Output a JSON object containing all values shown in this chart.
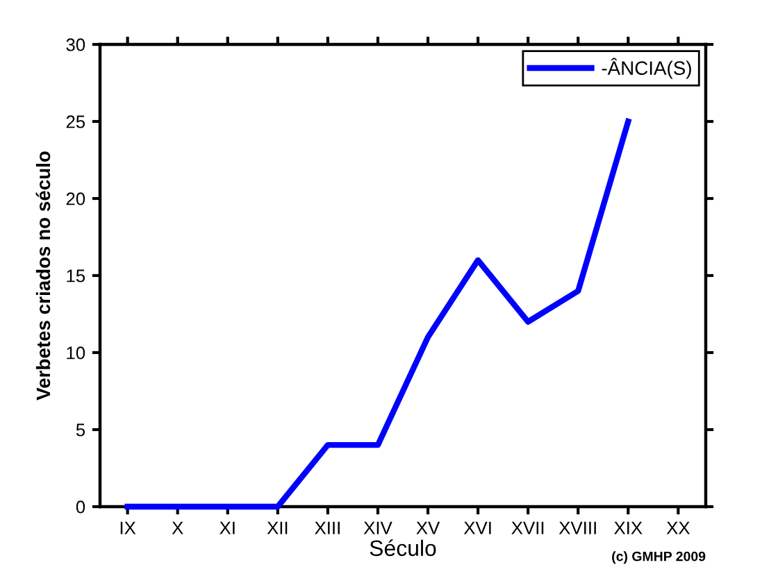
{
  "chart_data": {
    "type": "line",
    "xlabel": "Século",
    "ylabel": "Verbetes criados no século",
    "annotations": [
      "(c) GMHP 2009"
    ],
    "categories": [
      "IX",
      "X",
      "XI",
      "XII",
      "XIII",
      "XIV",
      "XV",
      "XVI",
      "XVII",
      "XVIII",
      "XIX",
      "XX"
    ],
    "series": [
      {
        "name": "-ÂNCIA(S)",
        "color": "#0000ff",
        "values": [
          0,
          0,
          0,
          0,
          4,
          4,
          11,
          16,
          12,
          14,
          25,
          null
        ]
      }
    ],
    "ylim": [
      0,
      30
    ],
    "yticks": [
      0,
      5,
      10,
      15,
      20,
      25,
      30
    ],
    "legend": "top right",
    "line_style": "solid",
    "grid": false
  }
}
